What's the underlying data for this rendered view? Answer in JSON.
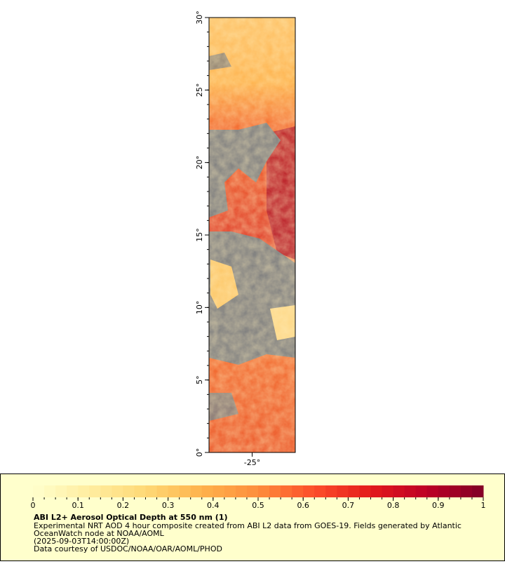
{
  "map": {
    "lat_range": [
      0,
      30
    ],
    "lat_ticks": [
      {
        "value": 0,
        "label": "0°"
      },
      {
        "value": 5,
        "label": "5°"
      },
      {
        "value": 10,
        "label": "10°"
      },
      {
        "value": 15,
        "label": "15°"
      },
      {
        "value": 20,
        "label": "20°"
      },
      {
        "value": 25,
        "label": "25°"
      },
      {
        "value": 30,
        "label": "30°"
      }
    ],
    "lon_range": [
      -28,
      -22
    ],
    "lon_ticks": [
      {
        "value": -25,
        "label": "-25°"
      }
    ]
  },
  "colorbar": {
    "range": [
      0,
      1
    ],
    "ticks": [
      0,
      0.1,
      0.2,
      0.3,
      0.4,
      0.5,
      0.6,
      0.7,
      0.8,
      0.9,
      1
    ],
    "colors": [
      "#ffffcc",
      "#ffeda0",
      "#fed976",
      "#feb24c",
      "#fd8d3c",
      "#fc4e2a",
      "#e31a1c",
      "#bd0026",
      "#800026"
    ]
  },
  "caption": {
    "title": "ABI L2+ Aerosol Optical Depth at 550 nm (1)",
    "lines": [
      "Experimental NRT AOD 4 hour composite created from ABI L2 data from GOES-19. Fields generated by Atlantic",
      "OceanWatch node at NOAA/AOML",
      "(2025-09-03T14:00:00Z)",
      "Data courtesy of USDOC/NOAA/OAR/AOML/PHOD"
    ]
  }
}
